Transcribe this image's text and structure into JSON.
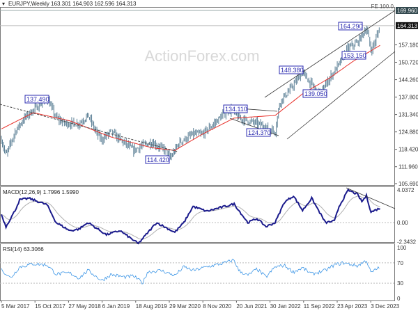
{
  "header": {
    "title": "EURJPY,Weekly",
    "ohlc": "163.301 164.903 162.596 164.313"
  },
  "watermark": "ActionForex.com",
  "colors": {
    "bars": "#5b7f95",
    "ma": "#e8302a",
    "macd": "#1a1a8c",
    "signal": "#b0b0b0",
    "rsi": "#3b95e6",
    "label_border": "#2b2bb0",
    "lines": "#333333"
  },
  "chart_data": [
    {
      "type": "ohlc-bar",
      "title": "EURJPY,Weekly",
      "ylim": [
        105.69,
        169.96
      ],
      "y_ticks": [
        "169.960",
        "164.313",
        "157.180",
        "150.720",
        "144.260",
        "137.800",
        "131.340",
        "124.880",
        "118.420",
        "111.960",
        "105.690"
      ],
      "current_price": "164.313",
      "fe_level": {
        "label": "FE 100.0",
        "value": "169.960"
      },
      "x_ticks": [
        "5 Mar 2017",
        "15 Oct 2017",
        "27 May 2018",
        "6 Jan 2019",
        "18 Aug 2019",
        "29 Mar 2020",
        "8 Nov 2020",
        "20 Jun 2021",
        "30 Jan 2022",
        "11 Sep 2022",
        "23 Apr 2023",
        "3 Dec 2023"
      ],
      "annotations": [
        {
          "text": "137.490",
          "date": "2018-01",
          "value": 137.49
        },
        {
          "text": "114.420",
          "date": "2020-04",
          "value": 114.42
        },
        {
          "text": "134.110",
          "date": "2021-05",
          "value": 134.11
        },
        {
          "text": "124.370",
          "date": "2022-03",
          "value": 124.37
        },
        {
          "text": "148.380",
          "date": "2022-09",
          "value": 148.38
        },
        {
          "text": "139.050",
          "date": "2023-01",
          "value": 139.05
        },
        {
          "text": "164.290",
          "date": "2023-11",
          "value": 164.29
        },
        {
          "text": "153.150",
          "date": "2023-12",
          "value": 153.15
        }
      ],
      "close": [
        [
          "2017-03",
          122
        ],
        [
          "2017-04",
          116
        ],
        [
          "2017-06",
          125
        ],
        [
          "2017-08",
          130
        ],
        [
          "2017-10",
          133
        ],
        [
          "2018-01",
          137.5
        ],
        [
          "2018-03",
          130
        ],
        [
          "2018-05",
          128
        ],
        [
          "2018-08",
          128
        ],
        [
          "2018-10",
          131
        ],
        [
          "2018-12",
          124
        ],
        [
          "2019-01",
          122
        ],
        [
          "2019-03",
          125
        ],
        [
          "2019-05",
          122
        ],
        [
          "2019-08",
          118
        ],
        [
          "2019-10",
          120
        ],
        [
          "2019-12",
          121
        ],
        [
          "2020-03",
          118
        ],
        [
          "2020-04",
          115
        ],
        [
          "2020-06",
          121
        ],
        [
          "2020-09",
          124
        ],
        [
          "2020-11",
          124
        ],
        [
          "2021-01",
          127
        ],
        [
          "2021-05",
          133.5
        ],
        [
          "2021-07",
          130
        ],
        [
          "2021-11",
          128
        ],
        [
          "2022-03",
          125
        ],
        [
          "2022-04",
          136
        ],
        [
          "2022-06",
          140
        ],
        [
          "2022-09",
          147
        ],
        [
          "2022-12",
          140
        ],
        [
          "2023-01",
          139.5
        ],
        [
          "2023-03",
          145
        ],
        [
          "2023-05",
          150
        ],
        [
          "2023-07",
          156
        ],
        [
          "2023-09",
          158
        ],
        [
          "2023-11",
          163.5
        ],
        [
          "2023-12",
          155
        ],
        [
          "2024-01",
          159
        ],
        [
          "2024-02",
          164.3
        ]
      ],
      "ma": [
        [
          "2017-03",
          126
        ],
        [
          "2017-10",
          132
        ],
        [
          "2018-06",
          129
        ],
        [
          "2019-03",
          123
        ],
        [
          "2019-12",
          119
        ],
        [
          "2020-05",
          118
        ],
        [
          "2020-11",
          124
        ],
        [
          "2021-06",
          130
        ],
        [
          "2022-03",
          131
        ],
        [
          "2022-09",
          139
        ],
        [
          "2023-03",
          145
        ],
        [
          "2023-08",
          151
        ],
        [
          "2024-02",
          157
        ]
      ]
    },
    {
      "type": "line",
      "title": "MACD(12,26,9) 1.7996 1.5990",
      "ylim": [
        -2.3432,
        4.0372
      ],
      "y_ticks": [
        "4.0372",
        "0.00",
        "-2.3432"
      ],
      "macd": [
        [
          "2017-03",
          1.0
        ],
        [
          "2017-04",
          -0.5
        ],
        [
          "2017-06",
          1.5
        ],
        [
          "2017-07",
          2.8
        ],
        [
          "2017-09",
          3.0
        ],
        [
          "2017-12",
          2.4
        ],
        [
          "2018-01",
          2.2
        ],
        [
          "2018-03",
          0
        ],
        [
          "2018-06",
          -1.0
        ],
        [
          "2018-08",
          -0.8
        ],
        [
          "2018-10",
          0
        ],
        [
          "2019-02",
          -1.5
        ],
        [
          "2019-05",
          -1.0
        ],
        [
          "2019-09",
          -2.6
        ],
        [
          "2020-01",
          0
        ],
        [
          "2020-05",
          -1.2
        ],
        [
          "2020-07",
          0
        ],
        [
          "2020-09",
          2.0
        ],
        [
          "2020-12",
          1.4
        ],
        [
          "2021-04",
          2.0
        ],
        [
          "2021-06",
          2.3
        ],
        [
          "2021-09",
          0
        ],
        [
          "2021-11",
          0.5
        ],
        [
          "2022-01",
          -0.5
        ],
        [
          "2022-03",
          0
        ],
        [
          "2022-05",
          2.5
        ],
        [
          "2022-07",
          3.3
        ],
        [
          "2022-09",
          1.5
        ],
        [
          "2022-11",
          3.0
        ],
        [
          "2023-02",
          0
        ],
        [
          "2023-04",
          0.2
        ],
        [
          "2023-05",
          2.0
        ],
        [
          "2023-07",
          4.0
        ],
        [
          "2023-09",
          3.5
        ],
        [
          "2023-10",
          2.6
        ],
        [
          "2023-11",
          3.3
        ],
        [
          "2023-12",
          1.3
        ],
        [
          "2024-02",
          1.8
        ]
      ]
    },
    {
      "type": "line",
      "title": "RSI(14) 63.3066",
      "ylim": [
        0,
        100
      ],
      "y_ticks": [
        "100",
        "70",
        "30",
        "0"
      ],
      "rsi": [
        [
          "2017-03",
          57
        ],
        [
          "2017-05",
          40
        ],
        [
          "2017-07",
          62
        ],
        [
          "2017-10",
          68
        ],
        [
          "2018-01",
          66
        ],
        [
          "2018-03",
          48
        ],
        [
          "2018-06",
          50
        ],
        [
          "2018-08",
          40
        ],
        [
          "2018-10",
          55
        ],
        [
          "2019-01",
          35
        ],
        [
          "2019-03",
          47
        ],
        [
          "2019-06",
          42
        ],
        [
          "2019-08",
          44
        ],
        [
          "2019-10",
          30
        ],
        [
          "2019-11",
          52
        ],
        [
          "2020-02",
          55
        ],
        [
          "2020-05",
          45
        ],
        [
          "2020-07",
          62
        ],
        [
          "2020-09",
          55
        ],
        [
          "2020-12",
          62
        ],
        [
          "2021-04",
          70
        ],
        [
          "2021-06",
          76
        ],
        [
          "2021-07",
          55
        ],
        [
          "2021-09",
          45
        ],
        [
          "2021-11",
          58
        ],
        [
          "2022-01",
          42
        ],
        [
          "2022-03",
          62
        ],
        [
          "2022-05",
          65
        ],
        [
          "2022-07",
          52
        ],
        [
          "2022-09",
          60
        ],
        [
          "2022-11",
          48
        ],
        [
          "2023-02",
          55
        ],
        [
          "2023-04",
          66
        ],
        [
          "2023-06",
          70
        ],
        [
          "2023-09",
          64
        ],
        [
          "2023-11",
          75
        ],
        [
          "2023-12",
          50
        ],
        [
          "2024-02",
          63
        ]
      ]
    }
  ]
}
